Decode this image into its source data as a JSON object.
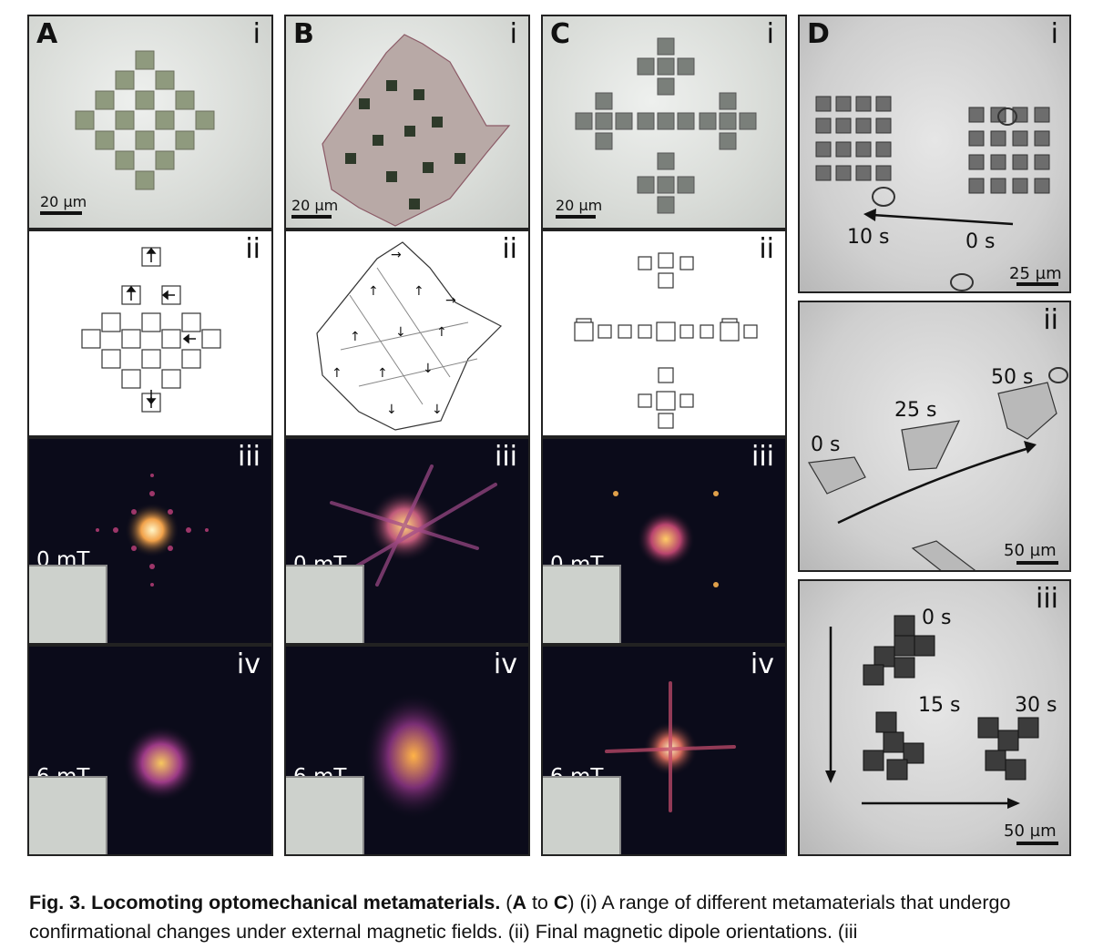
{
  "figure": {
    "panels": {
      "A": {
        "letter": "A",
        "i": "i",
        "ii": "ii",
        "iii": "iii",
        "iv": "iv",
        "scale": "20 µm",
        "field_iii": "0 mT",
        "field_iv": "6 mT"
      },
      "B": {
        "letter": "B",
        "i": "i",
        "ii": "ii",
        "iii": "iii",
        "iv": "iv",
        "scale": "20 µm",
        "field_iii": "0 mT",
        "field_iv": "6 mT"
      },
      "C": {
        "letter": "C",
        "i": "i",
        "ii": "ii",
        "iii": "iii",
        "iv": "iv",
        "scale": "20 µm",
        "field_iii": "0 mT",
        "field_iv": "6 mT"
      },
      "D": {
        "letter": "D",
        "i": {
          "label": "i",
          "t1": "10 s",
          "t2": "0 s",
          "scale": "25 µm"
        },
        "ii": {
          "label": "ii",
          "t1": "0 s",
          "t2": "25 s",
          "t3": "50 s",
          "scale": "50 µm"
        },
        "iii": {
          "label": "iii",
          "t1": "0 s",
          "t2": "15 s",
          "t3": "30 s",
          "scale": "50 µm"
        }
      }
    },
    "caption": {
      "title": "Fig. 3. Locomoting optomechanical metamaterials.",
      "p1": " (",
      "boldA": "A",
      "p2": " to ",
      "boldC": "C",
      "p3": ") (i) A range of different metamaterials that undergo confirmational changes under external magnetic fields. (ii) Final magnetic dipole orientations. (iii"
    }
  }
}
